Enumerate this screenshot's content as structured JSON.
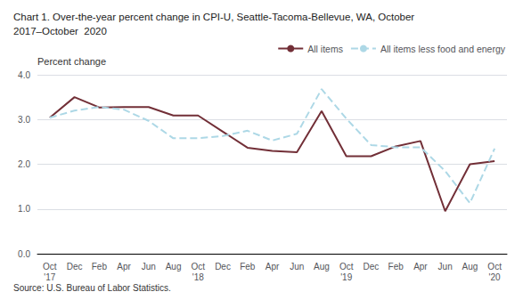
{
  "chart_data": {
    "type": "line",
    "title": "Chart 1. Over-the-year percent change in CPI-U, Seattle-Tacoma-Bellevue, WA, October\n2017–October  2020",
    "ylabel": "Percent change",
    "source": "Source: U.S. Bureau of Labor Statistics.",
    "categories": [
      "Oct\n'17",
      "Dec",
      "Feb",
      "Apr",
      "Jun",
      "Aug",
      "Oct\n'18",
      "Dec",
      "Feb",
      "Apr",
      "Jun",
      "Aug",
      "Oct\n'19",
      "Dec",
      "Feb",
      "Apr",
      "Jun",
      "Aug",
      "Oct\n'20"
    ],
    "series": [
      {
        "name": "All items",
        "color": "#722F37",
        "line_style": "solid",
        "values": [
          3.04,
          3.5,
          3.27,
          3.28,
          3.28,
          3.09,
          3.09,
          2.73,
          2.37,
          2.3,
          2.27,
          3.19,
          2.18,
          2.18,
          2.4,
          2.52,
          0.95,
          2.0,
          2.07
        ]
      },
      {
        "name": "All items less food and energy",
        "color": "#ADD8E6",
        "line_style": "dashed",
        "values": [
          3.04,
          3.2,
          3.28,
          3.22,
          2.97,
          2.58,
          2.58,
          2.63,
          2.75,
          2.53,
          2.68,
          3.68,
          3.02,
          2.43,
          2.38,
          2.38,
          1.85,
          1.13,
          2.35
        ]
      }
    ],
    "ylim": [
      0.0,
      4.0
    ],
    "yticks": [
      {
        "value": 0,
        "label": "0.0"
      },
      {
        "value": 1,
        "label": "1.0"
      },
      {
        "value": 2,
        "label": "2.0"
      },
      {
        "value": 3,
        "label": "3.0"
      },
      {
        "value": 4,
        "label": "4.0"
      }
    ],
    "grid": true,
    "legend": "upper right"
  }
}
